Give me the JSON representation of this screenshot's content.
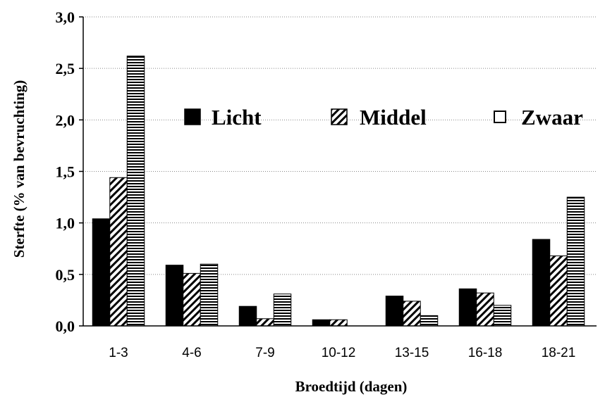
{
  "chart_data": {
    "type": "bar",
    "title": "",
    "xlabel": "Broedtijd (dagen)",
    "ylabel": "Sterfte (% van bevruchting)",
    "categories": [
      "1-3",
      "4-6",
      "7-9",
      "10-12",
      "13-15",
      "16-18",
      "18-21"
    ],
    "series": [
      {
        "name": "Licht",
        "pattern": "solid",
        "values": [
          1.04,
          0.59,
          0.19,
          0.06,
          0.29,
          0.36,
          0.84
        ]
      },
      {
        "name": "Middel",
        "pattern": "diagonal",
        "values": [
          1.44,
          0.51,
          0.07,
          0.06,
          0.24,
          0.32,
          0.68
        ]
      },
      {
        "name": "Zwaar",
        "pattern": "horizontal",
        "values": [
          2.62,
          0.6,
          0.31,
          0.0,
          0.1,
          0.2,
          1.25
        ]
      }
    ],
    "ylim": [
      0,
      3.0
    ],
    "yticks": [
      "0,0",
      "0,5",
      "1,0",
      "1,5",
      "2,0",
      "2,5",
      "3,0"
    ],
    "grid": true,
    "legend_position": "top-right",
    "colors": {
      "bar": "#000000",
      "background": "#ffffff",
      "grid": "#888888"
    }
  }
}
